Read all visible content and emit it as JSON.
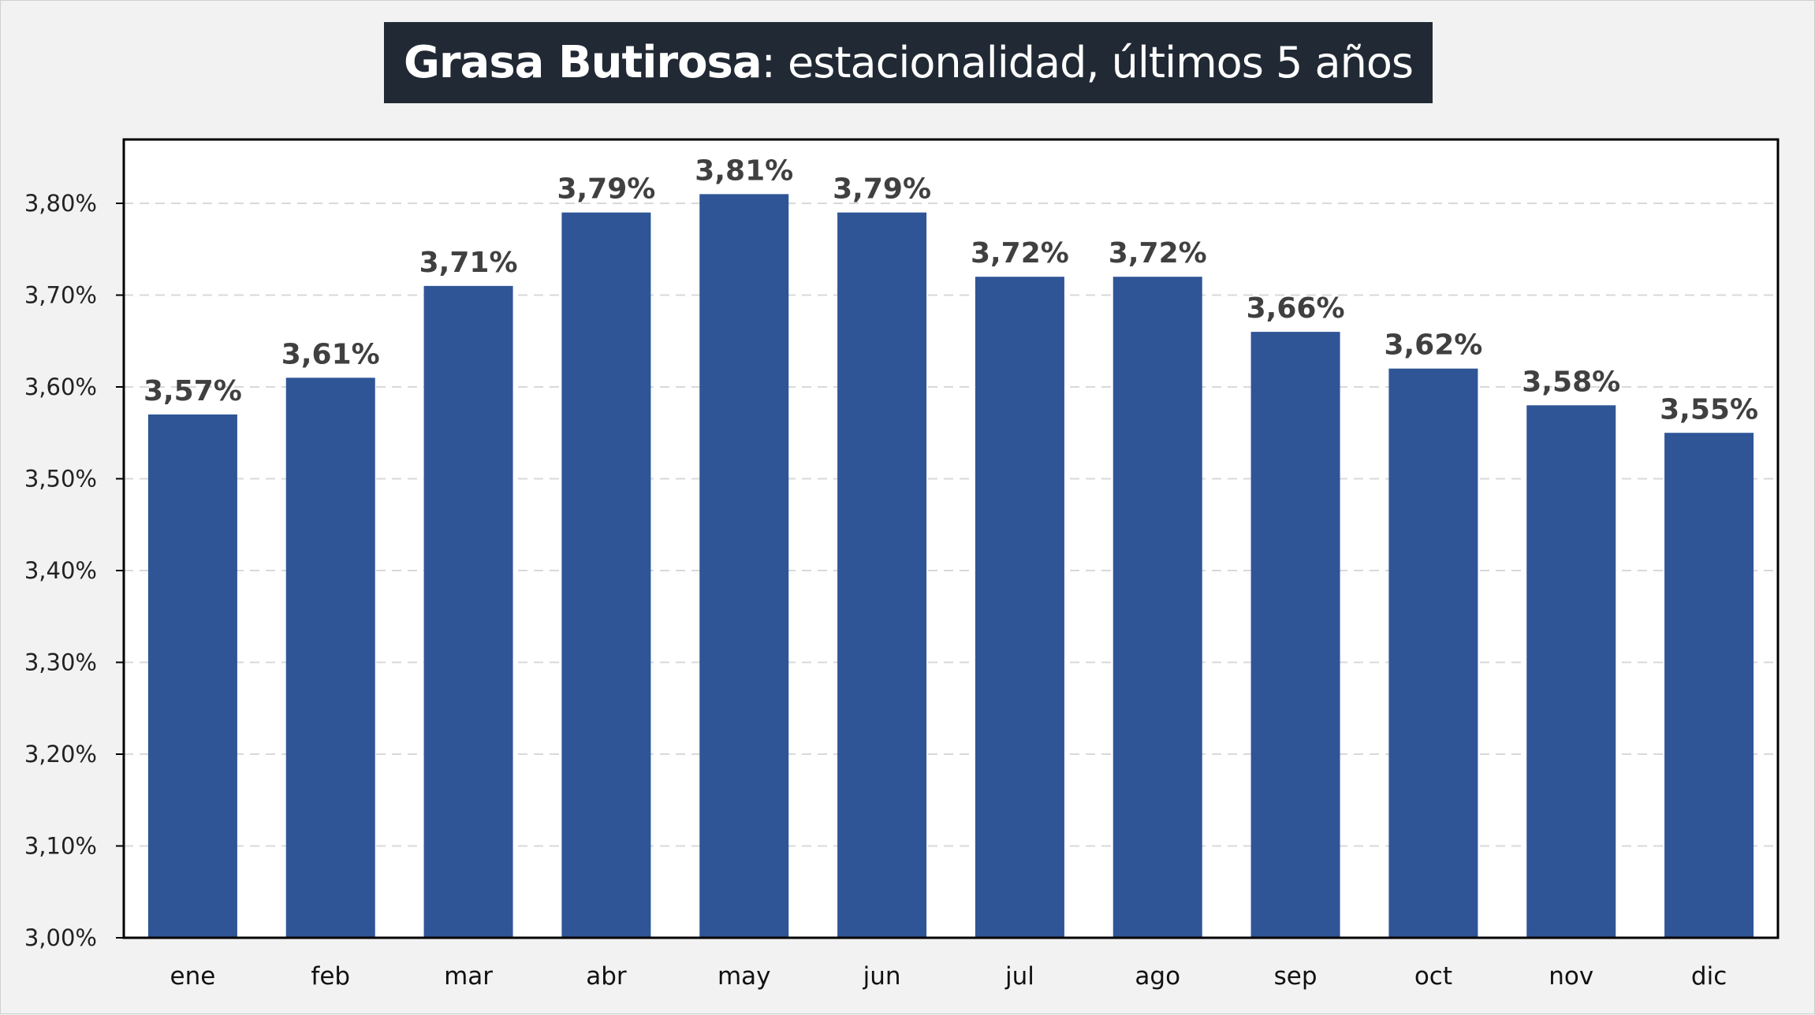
{
  "title": {
    "bold": "Grasa Butirosa",
    "rest": ": estacionalidad, últimos 5 años"
  },
  "colors": {
    "bar": "#2f5597",
    "title_bg": "#212934",
    "title_text": "#ffffff",
    "grid": "#d9d9d9",
    "background": "#f2f2f2",
    "plot_area": "#ffffff"
  },
  "chart_data": {
    "type": "bar",
    "categories": [
      "ene",
      "feb",
      "mar",
      "abr",
      "may",
      "jun",
      "jul",
      "ago",
      "sep",
      "oct",
      "nov",
      "dic"
    ],
    "values": [
      3.57,
      3.61,
      3.71,
      3.79,
      3.81,
      3.79,
      3.72,
      3.72,
      3.66,
      3.62,
      3.58,
      3.55
    ],
    "data_labels": [
      "3,57%",
      "3,61%",
      "3,71%",
      "3,79%",
      "3,81%",
      "3,79%",
      "3,72%",
      "3,72%",
      "3,66%",
      "3,62%",
      "3,58%",
      "3,55%"
    ],
    "ylim": [
      3.0,
      3.87
    ],
    "yticks": [
      3.0,
      3.1,
      3.2,
      3.3,
      3.4,
      3.5,
      3.6,
      3.7,
      3.8
    ],
    "ytick_labels": [
      "3,00%",
      "3,10%",
      "3,20%",
      "3,30%",
      "3,40%",
      "3,50%",
      "3,60%",
      "3,70%",
      "3,80%"
    ],
    "grid": "horizontal dashed",
    "legend": "none",
    "xlabel": "",
    "ylabel": ""
  }
}
